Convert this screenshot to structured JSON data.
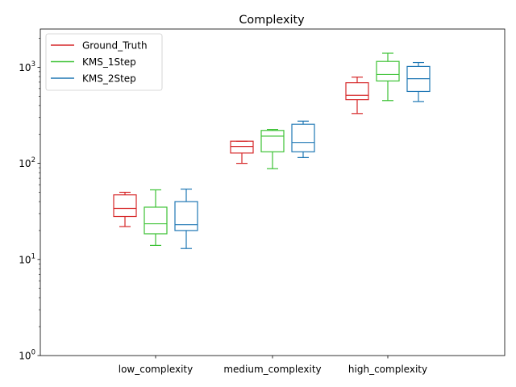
{
  "chart_data": {
    "type": "box",
    "title": "Complexity",
    "xlabel": "",
    "ylabel": "",
    "yscale": "log",
    "ylim": [
      1,
      2500
    ],
    "grid": false,
    "legend_position": "top-left",
    "categories": [
      "low_complexity",
      "medium_complexity",
      "high_complexity"
    ],
    "y_ticks": [
      {
        "value": 1,
        "label_base": "10",
        "label_exp": "0"
      },
      {
        "value": 10,
        "label_base": "10",
        "label_exp": "1"
      },
      {
        "value": 100,
        "label_base": "10",
        "label_exp": "2"
      },
      {
        "value": 1000,
        "label_base": "10",
        "label_exp": "3"
      }
    ],
    "series": [
      {
        "name": "Ground_Truth",
        "color": "#d62728",
        "boxes": [
          {
            "whislo": 22,
            "q1": 28,
            "med": 34,
            "q3": 47,
            "whishi": 50
          },
          {
            "whislo": 100,
            "q1": 128,
            "med": 150,
            "q3": 170,
            "whishi": 170
          },
          {
            "whislo": 330,
            "q1": 460,
            "med": 510,
            "q3": 690,
            "whishi": 790
          }
        ]
      },
      {
        "name": "KMS_1Step",
        "color": "#3cc234",
        "boxes": [
          {
            "whislo": 14,
            "q1": 18.5,
            "med": 23.5,
            "q3": 35,
            "whishi": 53
          },
          {
            "whislo": 88,
            "q1": 132,
            "med": 192,
            "q3": 220,
            "whishi": 225
          },
          {
            "whislo": 450,
            "q1": 720,
            "med": 840,
            "q3": 1150,
            "whishi": 1400
          }
        ]
      },
      {
        "name": "KMS_2Step",
        "color": "#1f77b4",
        "boxes": [
          {
            "whislo": 13,
            "q1": 20,
            "med": 23,
            "q3": 40,
            "whishi": 54
          },
          {
            "whislo": 115,
            "q1": 132,
            "med": 165,
            "q3": 255,
            "whishi": 275
          },
          {
            "whislo": 440,
            "q1": 560,
            "med": 760,
            "q3": 1020,
            "whishi": 1120
          }
        ]
      }
    ]
  }
}
